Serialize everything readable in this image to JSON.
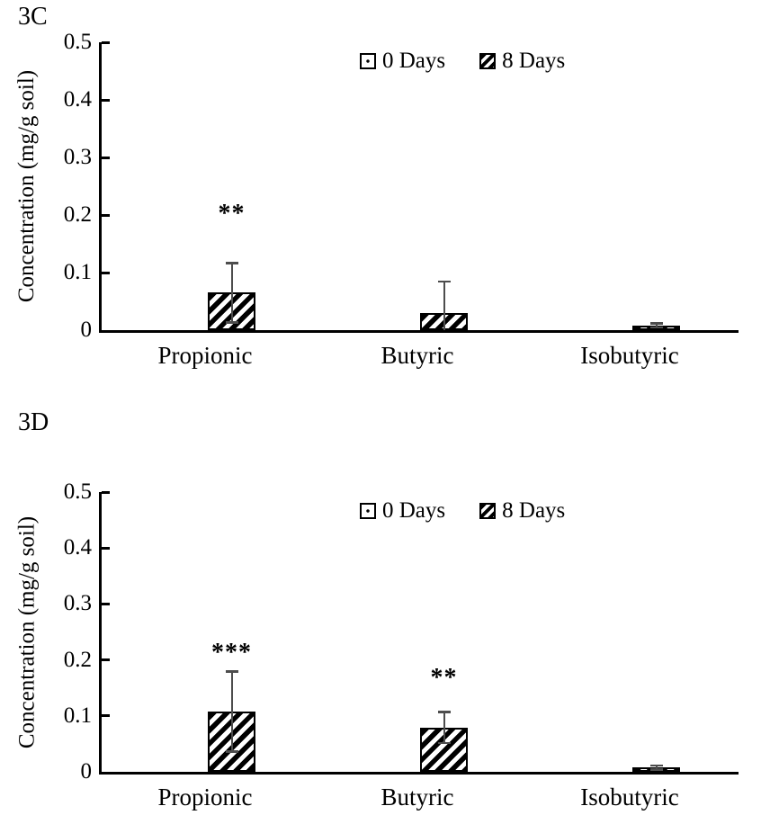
{
  "page": {
    "background": "#ffffff",
    "text_color": "#000000"
  },
  "chart_data": [
    {
      "type": "bar",
      "title": "3C",
      "ylabel": "Concentration (mg/g soil)",
      "xlabel": "",
      "categories": [
        "Propionic",
        "Butyric",
        "Isobutyric"
      ],
      "series": [
        {
          "name": "0 Days",
          "pattern": "dotted-white",
          "values": [
            0,
            0,
            0
          ],
          "errors": [
            0,
            0,
            0
          ]
        },
        {
          "name": "8 Days",
          "pattern": "diagonal-hatch",
          "values": [
            0.065,
            0.03,
            0.008
          ],
          "errors": [
            0.052,
            0.055,
            0.004
          ]
        }
      ],
      "annotations": [
        {
          "category": "Propionic",
          "text": "**",
          "y": 0.21
        }
      ],
      "ylim": [
        0,
        0.5
      ],
      "yticks": [
        "0",
        "0.1",
        "0.2",
        "0.3",
        "0.4",
        "0.5"
      ],
      "grid": false,
      "legend_position": "top-center-inside",
      "bar_fill": "#ffffff",
      "hatch_color": "#000000",
      "error_bar_color": "#4d4d4d"
    },
    {
      "type": "bar",
      "title": "3D",
      "ylabel": "Concentration (mg/g soil)",
      "xlabel": "",
      "categories": [
        "Propionic",
        "Butyric",
        "Isobutyric"
      ],
      "series": [
        {
          "name": "0 Days",
          "pattern": "dotted-white",
          "values": [
            0,
            0,
            0
          ],
          "errors": [
            0,
            0,
            0
          ]
        },
        {
          "name": "8 Days",
          "pattern": "diagonal-hatch",
          "values": [
            0.108,
            0.079,
            0.008
          ],
          "errors": [
            0.072,
            0.028,
            0.004
          ]
        }
      ],
      "annotations": [
        {
          "category": "Propionic",
          "text": "***",
          "y": 0.22
        },
        {
          "category": "Butyric",
          "text": "**",
          "y": 0.175
        }
      ],
      "ylim": [
        0,
        0.5
      ],
      "yticks": [
        "0",
        "0.1",
        "0.2",
        "0.3",
        "0.4",
        "0.5"
      ],
      "grid": false,
      "legend_position": "top-center-inside",
      "bar_fill": "#ffffff",
      "hatch_color": "#000000",
      "error_bar_color": "#4d4d4d"
    }
  ]
}
